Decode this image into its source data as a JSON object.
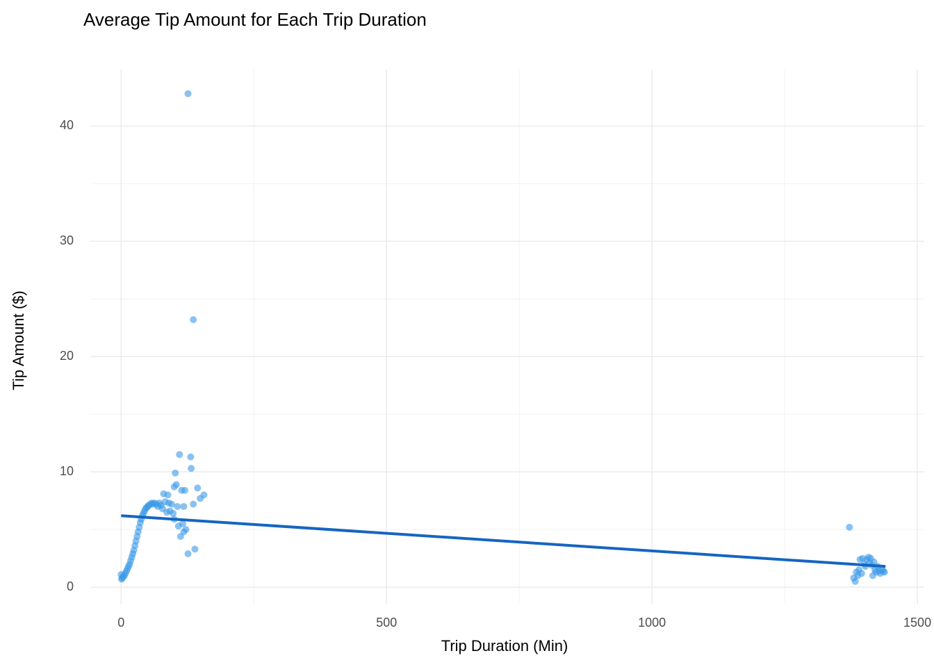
{
  "chart_data": {
    "type": "scatter",
    "title": "Average Tip Amount for Each Trip Duration",
    "x_label": "Trip Duration (Min)",
    "y_label": "Tip Amount ($)",
    "xlim": [
      -58,
      1513
    ],
    "ylim": [
      -1.5,
      44.9
    ],
    "xticks": [
      0,
      500,
      1000,
      1500
    ],
    "yticks": [
      0,
      10,
      20,
      30,
      40
    ],
    "x_minor_ticks": [
      250,
      750,
      1250
    ],
    "y_minor_ticks": [
      5,
      15,
      25,
      35
    ],
    "grid": true,
    "series": [
      {
        "color": "#3a9ae8",
        "x": [
          0,
          1,
          2,
          4,
          6,
          8,
          10,
          12,
          14,
          16,
          18,
          20,
          22,
          24,
          26,
          28,
          30,
          32,
          34,
          36,
          38,
          40,
          42,
          44,
          46,
          48,
          50,
          52,
          55,
          58,
          60,
          63,
          66,
          69,
          72,
          75,
          78,
          80,
          83,
          86,
          88,
          90,
          92,
          95,
          98,
          100,
          102,
          104,
          106,
          108,
          110,
          112,
          114,
          116,
          118,
          120,
          122,
          126,
          126,
          131,
          132,
          136,
          136,
          139,
          144,
          149,
          156,
          118,
          100,
          1372,
          1380,
          1383,
          1385,
          1388,
          1390,
          1392,
          1395,
          1397,
          1400,
          1402,
          1405,
          1408,
          1410,
          1412,
          1414,
          1416,
          1418,
          1420,
          1422,
          1425,
          1428,
          1430,
          1433,
          1436,
          1438
        ],
        "values": [
          1.1,
          0.7,
          0.8,
          0.9,
          1.0,
          1.2,
          1.4,
          1.6,
          1.8,
          2.0,
          2.3,
          2.6,
          2.9,
          3.2,
          3.6,
          4.0,
          4.4,
          4.8,
          5.2,
          5.6,
          5.9,
          6.2,
          6.4,
          6.6,
          6.8,
          6.9,
          7.0,
          7.1,
          7.2,
          7.3,
          7.2,
          7.3,
          7.2,
          7.0,
          7.3,
          7.1,
          6.8,
          8.1,
          7.4,
          6.5,
          8.0,
          7.3,
          6.6,
          7.2,
          6.4,
          8.7,
          9.9,
          8.9,
          7.0,
          5.3,
          11.5,
          4.4,
          8.4,
          5.5,
          7.0,
          8.4,
          5.0,
          42.8,
          2.9,
          11.3,
          10.3,
          23.2,
          7.2,
          3.3,
          8.6,
          7.7,
          8.0,
          4.8,
          5.9,
          5.2,
          0.8,
          0.5,
          1.3,
          1.0,
          1.5,
          2.4,
          1.2,
          2.5,
          2.0,
          1.8,
          2.4,
          2.6,
          2.1,
          2.5,
          1.9,
          1.0,
          2.2,
          1.5,
          1.3,
          1.8,
          1.4,
          1.2,
          1.5,
          1.4,
          1.3
        ]
      }
    ],
    "trend_line": {
      "color": "#1565c0",
      "x": [
        0,
        1440
      ],
      "values": [
        6.2,
        1.8
      ]
    }
  }
}
